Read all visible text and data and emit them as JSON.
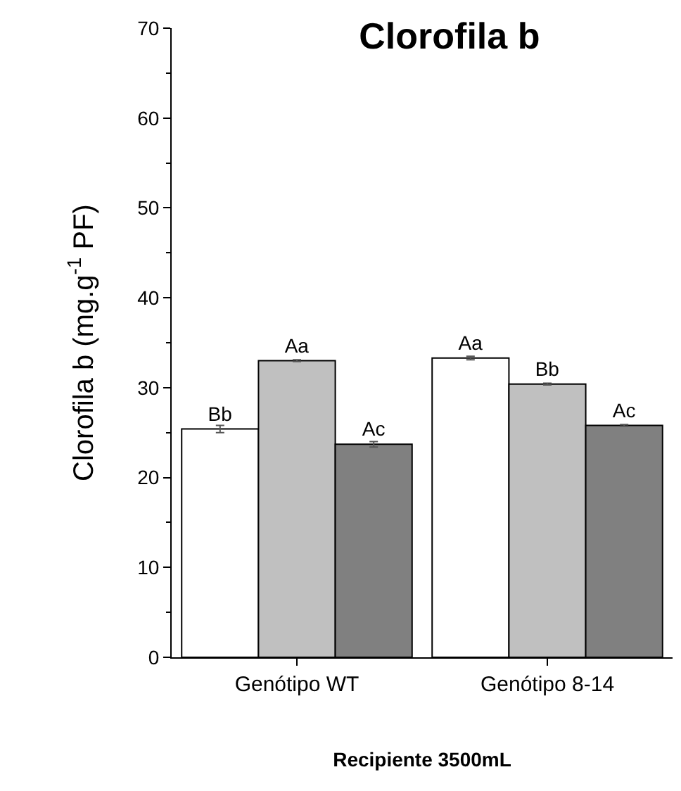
{
  "chart_data": {
    "type": "bar",
    "title": "Clorofila b",
    "xlabel": "Recipiente 3500mL",
    "ylabel": "Clorofila b (mg.g$^{-1}$ PF)",
    "categories": [
      "Genótipo WT",
      "Genótipo 8-14"
    ],
    "series": [
      {
        "color": "#ffffff",
        "values": [
          25.4,
          33.3
        ],
        "errors": [
          0.4,
          0.2
        ],
        "value_labels": [
          "Bb",
          "Aa"
        ]
      },
      {
        "color": "#c0c0c0",
        "values": [
          33.0,
          30.4
        ],
        "errors": [
          0.1,
          0.1
        ],
        "value_labels": [
          "Aa",
          "Bb"
        ]
      },
      {
        "color": "#808080",
        "values": [
          23.7,
          25.8
        ],
        "errors": [
          0.3,
          0.1
        ],
        "value_labels": [
          "Ac",
          "Ac"
        ]
      }
    ],
    "ylim": [
      0,
      70
    ],
    "yticks": [
      0,
      10,
      20,
      30,
      40,
      50,
      60,
      70
    ],
    "grid": false
  }
}
